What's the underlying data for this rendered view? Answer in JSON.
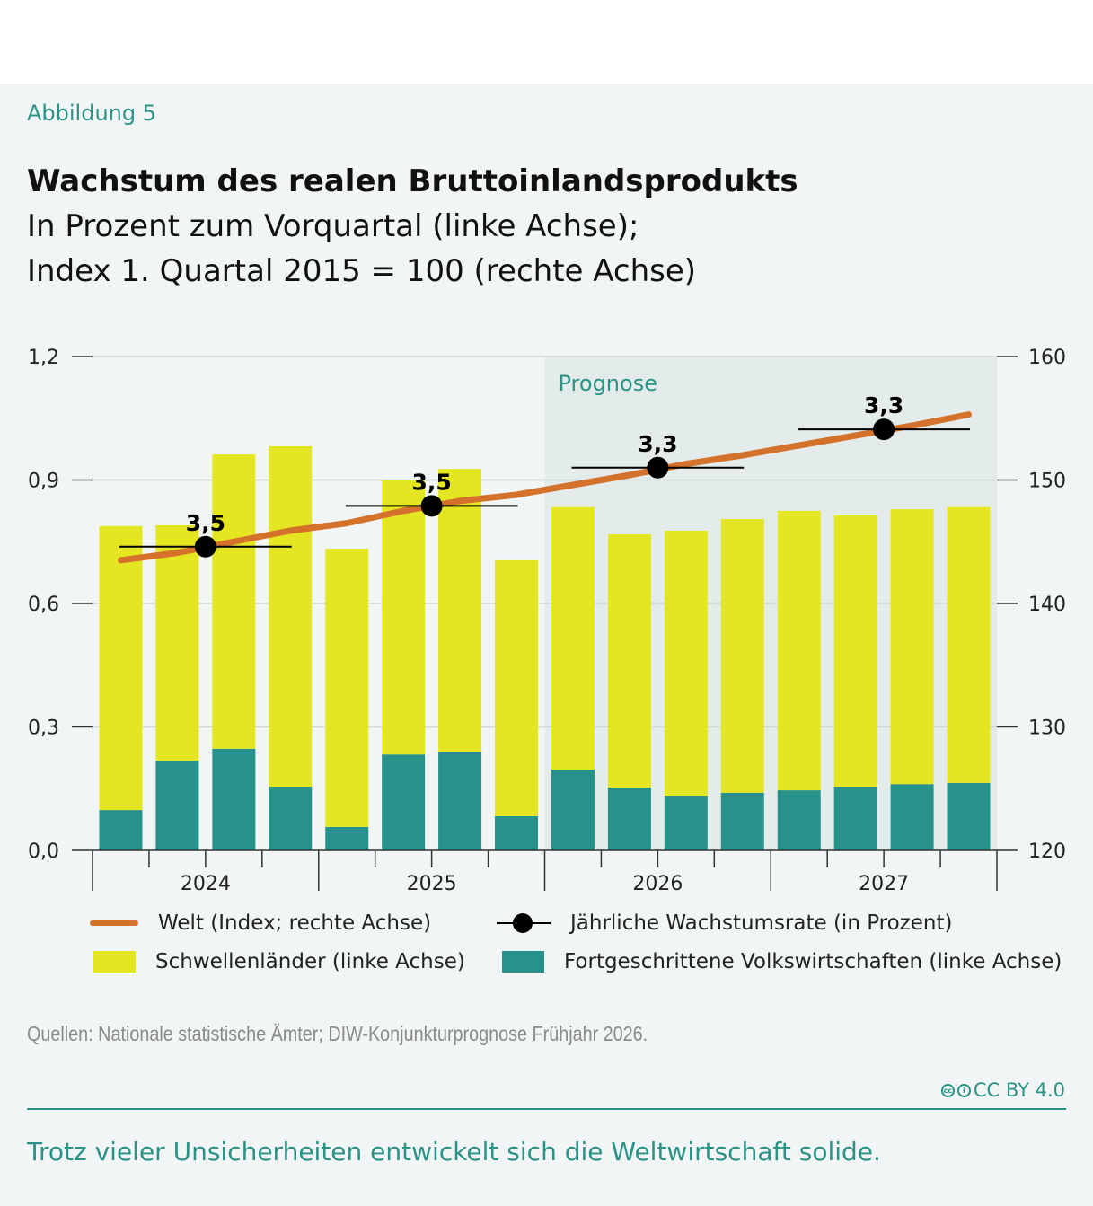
{
  "figure_label": "Abbildung 5",
  "chart_data": {
    "type": "bar",
    "title": "Wachstum des realen Bruttoinlandsprodukts",
    "subtitle_lines": [
      "In Prozent zum Vorquartal (linke Achse);",
      "Index 1. Quartal 2015 = 100 (rechte Achse)"
    ],
    "stacked": true,
    "categories": [
      "2024 Q1",
      "2024 Q2",
      "2024 Q3",
      "2024 Q4",
      "2025 Q1",
      "2025 Q2",
      "2025 Q3",
      "2025 Q4",
      "2026 Q1",
      "2026 Q2",
      "2026 Q3",
      "2026 Q4",
      "2027 Q1",
      "2027 Q2",
      "2027 Q3",
      "2027 Q4"
    ],
    "year_labels": [
      "2024",
      "2025",
      "2026",
      "2027"
    ],
    "left_axis": {
      "ylim": [
        0,
        1.2
      ],
      "ticks": [
        "0,0",
        "0,3",
        "0,6",
        "0,9",
        "1,2"
      ],
      "tick_values": [
        0,
        0.3,
        0.6,
        0.9,
        1.2
      ]
    },
    "right_axis": {
      "ylim": [
        120,
        160
      ],
      "ticks": [
        "120",
        "130",
        "140",
        "150",
        "160"
      ],
      "tick_values": [
        120,
        130,
        140,
        150,
        160
      ]
    },
    "series": [
      {
        "name": "Fortgeschrittene Volkswirtschaften (linke Achse)",
        "type": "bar",
        "axis": "left",
        "color": "#26928a",
        "values": [
          0.098,
          0.218,
          0.247,
          0.155,
          0.057,
          0.233,
          0.24,
          0.083,
          0.196,
          0.153,
          0.133,
          0.14,
          0.146,
          0.155,
          0.161,
          0.164
        ]
      },
      {
        "name": "Schwellenländer (linke Achse)",
        "type": "bar",
        "axis": "left",
        "color": "#e5e622",
        "values": [
          0.69,
          0.572,
          0.715,
          0.827,
          0.676,
          0.666,
          0.687,
          0.622,
          0.638,
          0.615,
          0.644,
          0.665,
          0.679,
          0.659,
          0.668,
          0.67
        ]
      },
      {
        "name": "Welt (Index; rechte Achse)",
        "type": "line",
        "axis": "right",
        "color": "#d4712a",
        "values": [
          143.5,
          144.1,
          145.0,
          145.9,
          146.5,
          147.5,
          148.3,
          148.8,
          149.6,
          150.4,
          151.3,
          152.0,
          152.8,
          153.6,
          154.4,
          155.3
        ]
      },
      {
        "name": "Jährliche Wachstumsrate (in Prozent)",
        "type": "annual-marker",
        "axis": "right",
        "color": "#000000",
        "years": [
          "2024",
          "2025",
          "2026",
          "2027"
        ],
        "positions": [
          144.6,
          147.9,
          151.0,
          154.1
        ],
        "labels": [
          "3,5",
          "3,5",
          "3,3",
          "3,3"
        ]
      }
    ],
    "annotation": {
      "text": "Prognose",
      "from_category": "2026 Q1",
      "to_category": "2027 Q4"
    },
    "grid": true,
    "legend": "bottom"
  },
  "legend": {
    "welt": "Welt (Index; rechte Achse)",
    "jaehrlich": "Jährliche Wachstumsrate (in Prozent)",
    "schwellen": "Schwellenländer (linke Achse)",
    "fortgeschritten": "Fortgeschrittene Volkswirtschaften (linke Achse)"
  },
  "source": "Quellen: Nationale statistische Ämter; DIW-Konjunkturprognose Frühjahr 2026.",
  "license": "CC BY 4.0",
  "caption": "Trotz vieler Unsicherheiten entwickelt sich die Weltwirtschaft solide.",
  "colors": {
    "accent": "#2a9385",
    "yellow": "#e5e622",
    "teal": "#26928a",
    "orange": "#d4712a",
    "prognose_shade": "#e3ecea"
  }
}
